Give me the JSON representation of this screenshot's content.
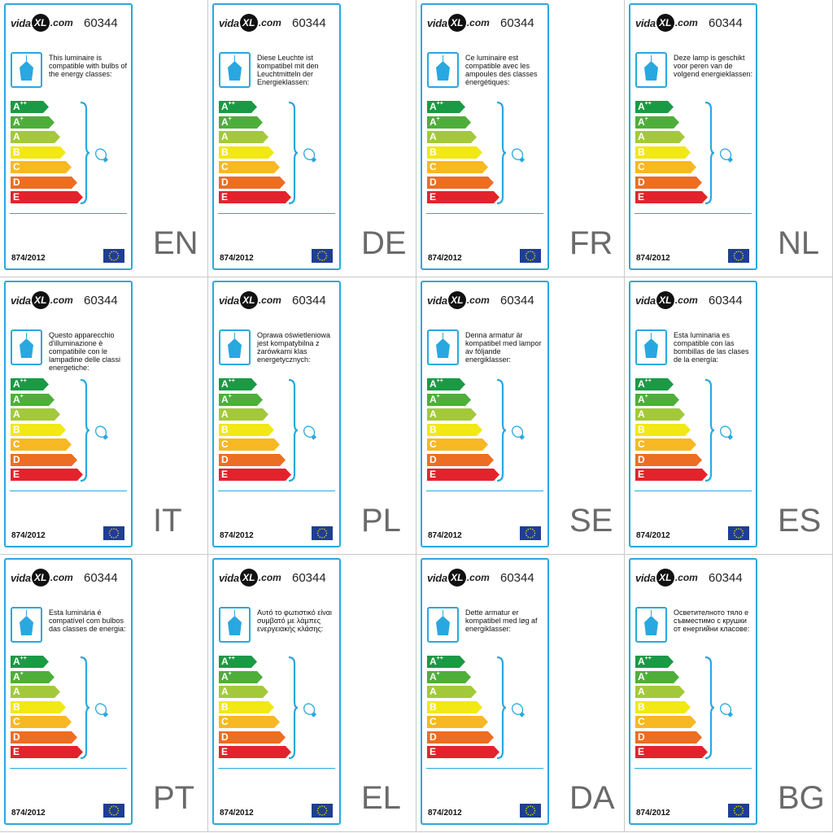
{
  "logo": {
    "brand_left": "vida",
    "brand_mid": "XL",
    "brand_right": ".com"
  },
  "article_number": "60344",
  "regulation": "874/2012",
  "energy_classes": [
    {
      "main": "A",
      "sup": "++",
      "color": "#1a9a44"
    },
    {
      "main": "A",
      "sup": "+",
      "color": "#4daf3a"
    },
    {
      "main": "A",
      "sup": "",
      "color": "#a3c93a"
    },
    {
      "main": "B",
      "sup": "",
      "color": "#f1e815"
    },
    {
      "main": "C",
      "sup": "",
      "color": "#f7b823"
    },
    {
      "main": "D",
      "sup": "",
      "color": "#ec6e22"
    },
    {
      "main": "E",
      "sup": "",
      "color": "#e3232c"
    }
  ],
  "colors": {
    "accent": "#29a8df",
    "lamp_fill": "#29a8df",
    "eu_flag": "#1f3e93",
    "eu_stars": "#f6d80f"
  },
  "icons": {
    "lamp": "pendant-lamp-icon",
    "bulb": "bulb-icon",
    "flag": "eu-flag-icon",
    "brace": "curly-brace-icon"
  },
  "labels": [
    {
      "lang": "EN",
      "text": "This luminaire is compatible with bulbs of the energy classes:"
    },
    {
      "lang": "DE",
      "text": "Diese Leuchte ist kompatibel mit den Leuchtmitteln der Energieklassen:"
    },
    {
      "lang": "FR",
      "text": "Ce luminaire est compatible avec les ampoules des classes énergétiques:"
    },
    {
      "lang": "NL",
      "text": "Deze lamp is geschikt voor peren van de volgend energieklassen:"
    },
    {
      "lang": "IT",
      "text": "Questo apparecchio d'illuminazione è compatibile con le lampadine delle classi energetiche:"
    },
    {
      "lang": "PL",
      "text": "Oprawa oświetleniowa jest kompatybilna z żarówkami klas energetycznych:"
    },
    {
      "lang": "SE",
      "text": "Denna armatur är kompatibel med lampor av följande energiklasser:"
    },
    {
      "lang": "ES",
      "text": "Esta luminaria es compatible con las bombillas de las clases de la energía:"
    },
    {
      "lang": "PT",
      "text": "Esta luminária é compatível com bulbos das classes de energia:"
    },
    {
      "lang": "EL",
      "text": "Αυτό το φωτιστικό είναι συμβατό με λάμπες ενεργειακής κλάσης:"
    },
    {
      "lang": "DA",
      "text": "Dette armatur er kompatibel med løg af energiklasser:"
    },
    {
      "lang": "BG",
      "text": "Осветителното тяло е съвместимо с крушки от енергийни класове:"
    }
  ]
}
